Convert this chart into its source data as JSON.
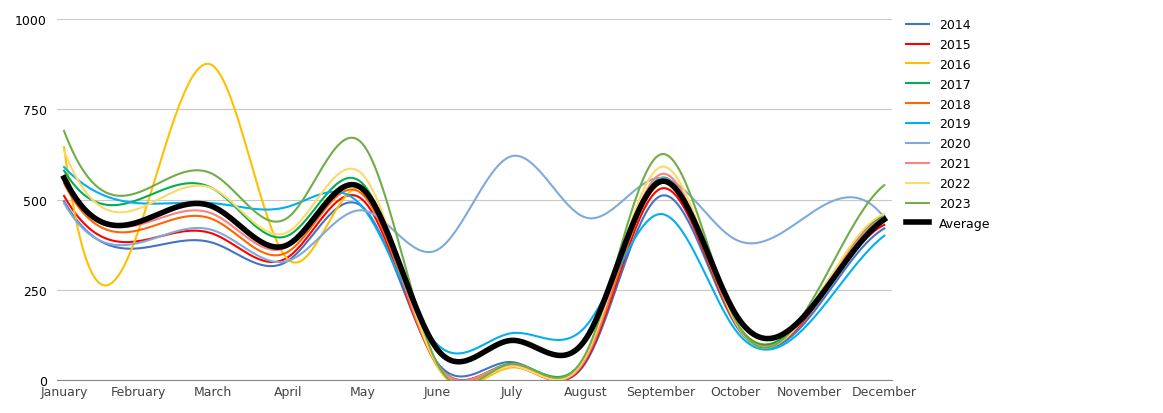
{
  "months": [
    "January",
    "February",
    "March",
    "April",
    "May",
    "June",
    "July",
    "August",
    "September",
    "October",
    "November",
    "December"
  ],
  "series": {
    "2014": {
      "color": "#4472C4",
      "linewidth": 1.5,
      "values": [
        495,
        365,
        380,
        330,
        480,
        50,
        50,
        50,
        510,
        155,
        175,
        420
      ]
    },
    "2015": {
      "color": "#FF0000",
      "linewidth": 1.5,
      "values": [
        510,
        385,
        405,
        340,
        500,
        45,
        40,
        55,
        530,
        160,
        185,
        430
      ]
    },
    "2016": {
      "color": "#FFC000",
      "linewidth": 1.5,
      "values": [
        645,
        415,
        870,
        335,
        530,
        40,
        35,
        65,
        545,
        165,
        195,
        445
      ]
    },
    "2017": {
      "color": "#00B050",
      "linewidth": 1.5,
      "values": [
        580,
        500,
        530,
        400,
        545,
        48,
        45,
        70,
        560,
        165,
        200,
        455
      ]
    },
    "2018": {
      "color": "#FF6600",
      "linewidth": 1.5,
      "values": [
        545,
        415,
        445,
        355,
        515,
        42,
        38,
        60,
        545,
        160,
        190,
        440
      ]
    },
    "2019": {
      "color": "#00B0F0",
      "linewidth": 1.5,
      "values": [
        590,
        490,
        490,
        480,
        480,
        100,
        130,
        150,
        460,
        140,
        160,
        400
      ]
    },
    "2020": {
      "color": "#7FAADC",
      "linewidth": 1.5,
      "values": [
        490,
        380,
        415,
        330,
        470,
        360,
        620,
        450,
        560,
        390,
        460,
        450
      ]
    },
    "2021": {
      "color": "#FF8080",
      "linewidth": 1.5,
      "values": [
        555,
        430,
        460,
        370,
        530,
        46,
        42,
        62,
        570,
        163,
        193,
        450
      ]
    },
    "2022": {
      "color": "#FFD966",
      "linewidth": 1.5,
      "values": [
        635,
        475,
        530,
        410,
        570,
        43,
        38,
        68,
        590,
        163,
        197,
        460
      ]
    },
    "2023": {
      "color": "#70AD47",
      "linewidth": 1.5,
      "values": [
        690,
        520,
        570,
        450,
        655,
        48,
        45,
        75,
        625,
        168,
        210,
        540
      ]
    },
    "Average": {
      "color": "#000000",
      "linewidth": 4.0,
      "values": [
        560,
        438,
        480,
        375,
        530,
        87,
        110,
        115,
        550,
        185,
        195,
        445
      ]
    }
  },
  "ylim": [
    0,
    1000
  ],
  "yticks": [
    0,
    250,
    500,
    750,
    1000
  ],
  "background_color": "#ffffff",
  "grid_color": "#c8c8c8"
}
